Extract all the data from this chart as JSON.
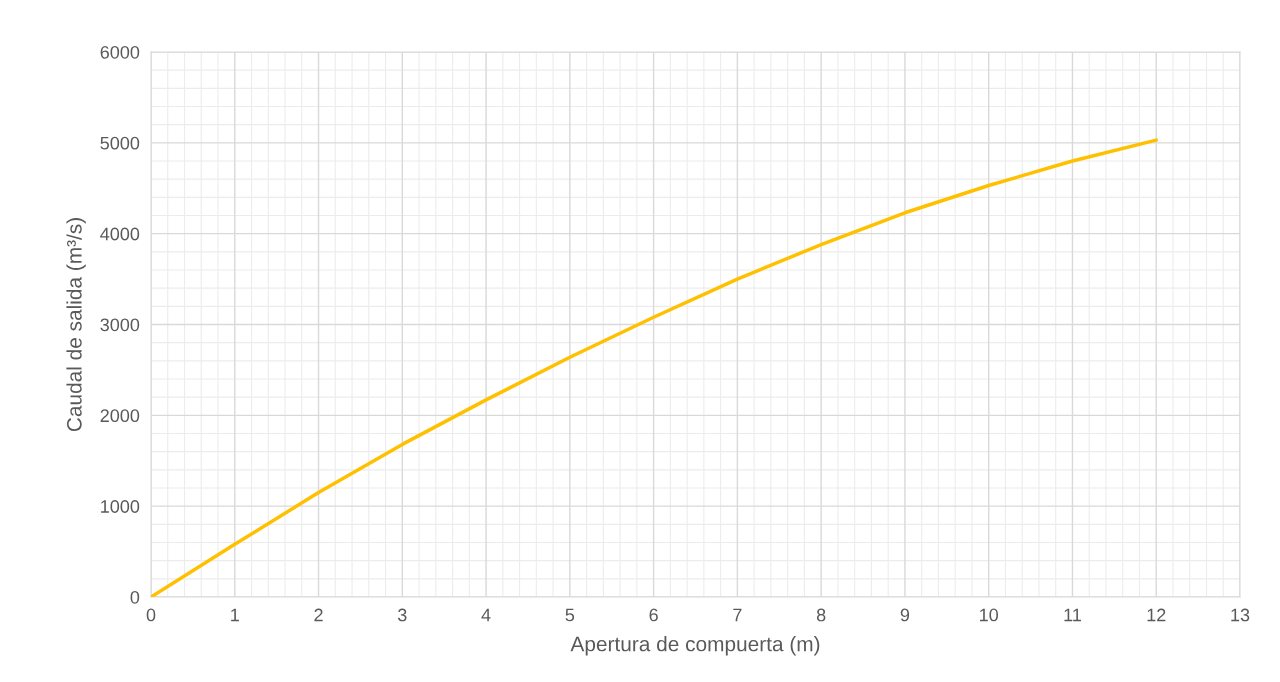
{
  "chart_data": {
    "type": "line",
    "xlabel": "Apertura de compuerta (m)",
    "ylabel": "Caudal de salida (m³/s)",
    "x": [
      0,
      1,
      2,
      3,
      4,
      5,
      6,
      7,
      8,
      9,
      10,
      11,
      12
    ],
    "series": [
      {
        "color": "#ffc000",
        "values": [
          0,
          580,
          1150,
          1680,
          2170,
          2640,
          3080,
          3500,
          3880,
          4230,
          4530,
          4800,
          5030
        ]
      }
    ],
    "xlim": [
      0,
      13
    ],
    "xticks": [
      0,
      1,
      2,
      3,
      4,
      5,
      6,
      7,
      8,
      9,
      10,
      11,
      12,
      13
    ],
    "ylim": [
      0,
      6000
    ],
    "yticks": [
      0,
      1000,
      2000,
      3000,
      4000,
      5000,
      6000
    ],
    "grid": true,
    "marker": "none",
    "line_style": "solid",
    "legend": false
  }
}
